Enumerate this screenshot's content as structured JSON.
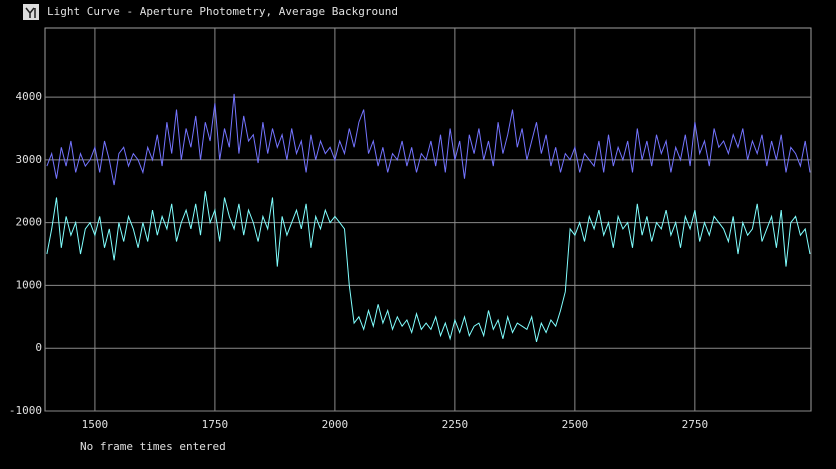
{
  "chart_data": {
    "type": "line",
    "title": "Light Curve - Aperture Photometry, Average Background",
    "footer": "No frame times entered",
    "xlim": [
      1396,
      2992
    ],
    "ylim": [
      -1000,
      5100
    ],
    "xticks": [
      1500,
      1750,
      2000,
      2250,
      2500,
      2750
    ],
    "yticks": [
      -1000,
      0,
      1000,
      2000,
      3000,
      4000
    ],
    "grid": true,
    "x": [
      1400,
      1410,
      1420,
      1430,
      1440,
      1450,
      1460,
      1470,
      1480,
      1490,
      1500,
      1510,
      1520,
      1530,
      1540,
      1550,
      1560,
      1570,
      1580,
      1590,
      1600,
      1610,
      1620,
      1630,
      1640,
      1650,
      1660,
      1670,
      1680,
      1690,
      1700,
      1710,
      1720,
      1730,
      1740,
      1750,
      1760,
      1770,
      1780,
      1790,
      1800,
      1810,
      1820,
      1830,
      1840,
      1850,
      1860,
      1870,
      1880,
      1890,
      1900,
      1910,
      1920,
      1930,
      1940,
      1950,
      1960,
      1970,
      1980,
      1990,
      2000,
      2010,
      2020,
      2030,
      2040,
      2050,
      2060,
      2070,
      2080,
      2090,
      2100,
      2110,
      2120,
      2130,
      2140,
      2150,
      2160,
      2170,
      2180,
      2190,
      2200,
      2210,
      2220,
      2230,
      2240,
      2250,
      2260,
      2270,
      2280,
      2290,
      2300,
      2310,
      2320,
      2330,
      2340,
      2350,
      2360,
      2370,
      2380,
      2390,
      2400,
      2410,
      2420,
      2430,
      2440,
      2450,
      2460,
      2470,
      2480,
      2490,
      2500,
      2510,
      2520,
      2530,
      2540,
      2550,
      2560,
      2570,
      2580,
      2590,
      2600,
      2610,
      2620,
      2630,
      2640,
      2650,
      2660,
      2670,
      2680,
      2690,
      2700,
      2710,
      2720,
      2730,
      2740,
      2750,
      2760,
      2770,
      2780,
      2790,
      2800,
      2810,
      2820,
      2830,
      2840,
      2850,
      2860,
      2870,
      2880,
      2890,
      2900,
      2910,
      2920,
      2930,
      2940,
      2950,
      2960,
      2970,
      2980,
      2990
    ],
    "series": [
      {
        "color": "#7474ff",
        "values": [
          2900,
          3100,
          2700,
          3200,
          2900,
          3300,
          2800,
          3100,
          2900,
          3000,
          3200,
          2800,
          3300,
          3000,
          2600,
          3100,
          3200,
          2900,
          3100,
          3000,
          2800,
          3200,
          3000,
          3400,
          2900,
          3600,
          3100,
          3800,
          3000,
          3500,
          3200,
          3700,
          3000,
          3600,
          3300,
          3900,
          3000,
          3500,
          3200,
          4050,
          3100,
          3700,
          3300,
          3400,
          2950,
          3600,
          3100,
          3500,
          3200,
          3400,
          3000,
          3500,
          3100,
          3300,
          2800,
          3400,
          3000,
          3300,
          3100,
          3200,
          3000,
          3300,
          3100,
          3500,
          3200,
          3600,
          3800,
          3100,
          3300,
          2900,
          3200,
          2800,
          3100,
          3000,
          3300,
          2900,
          3200,
          2800,
          3100,
          3000,
          3300,
          2900,
          3400,
          2800,
          3500,
          3000,
          3300,
          2700,
          3400,
          3100,
          3500,
          3000,
          3300,
          2900,
          3600,
          3100,
          3400,
          3800,
          3200,
          3500,
          3000,
          3300,
          3600,
          3100,
          3400,
          2900,
          3200,
          2800,
          3100,
          3000,
          3200,
          2800,
          3100,
          3000,
          2900,
          3300,
          2800,
          3400,
          2900,
          3200,
          3000,
          3300,
          2800,
          3500,
          3000,
          3300,
          2900,
          3400,
          3100,
          3300,
          2800,
          3200,
          3000,
          3400,
          2900,
          3600,
          3100,
          3300,
          2900,
          3500,
          3200,
          3300,
          3100,
          3400,
          3200,
          3500,
          3000,
          3300,
          3100,
          3400,
          2900,
          3300,
          3000,
          3400,
          2800,
          3200,
          3100,
          2900,
          3300,
          2800
        ]
      },
      {
        "color": "#80ffff",
        "values": [
          1500,
          1900,
          2400,
          1600,
          2100,
          1800,
          2000,
          1500,
          1900,
          2000,
          1800,
          2100,
          1600,
          1900,
          1400,
          2000,
          1700,
          2100,
          1900,
          1600,
          2000,
          1700,
          2200,
          1800,
          2100,
          1900,
          2300,
          1700,
          2000,
          2200,
          1900,
          2300,
          1800,
          2500,
          2000,
          2200,
          1700,
          2400,
          2100,
          1900,
          2300,
          1800,
          2200,
          2000,
          1700,
          2100,
          1900,
          2400,
          1300,
          2100,
          1800,
          2000,
          2200,
          1900,
          2300,
          1600,
          2100,
          1900,
          2200,
          2000,
          2100,
          2000,
          1900,
          1000,
          400,
          500,
          300,
          600,
          350,
          700,
          400,
          600,
          300,
          500,
          350,
          450,
          250,
          550,
          300,
          400,
          300,
          500,
          200,
          400,
          150,
          450,
          250,
          500,
          200,
          350,
          400,
          200,
          600,
          300,
          450,
          150,
          500,
          250,
          400,
          350,
          300,
          500,
          100,
          400,
          250,
          450,
          350,
          600,
          900,
          1900,
          1800,
          2000,
          1700,
          2100,
          1900,
          2200,
          1800,
          2000,
          1600,
          2100,
          1900,
          2000,
          1600,
          2300,
          1800,
          2100,
          1700,
          2000,
          1900,
          2200,
          1800,
          2000,
          1600,
          2100,
          1900,
          2200,
          1700,
          2000,
          1800,
          2100,
          2000,
          1900,
          1700,
          2100,
          1500,
          2000,
          1800,
          1900,
          2300,
          1700,
          1900,
          2100,
          1600,
          2200,
          1300,
          2000,
          2100,
          1800,
          1900,
          1500
        ]
      }
    ]
  }
}
